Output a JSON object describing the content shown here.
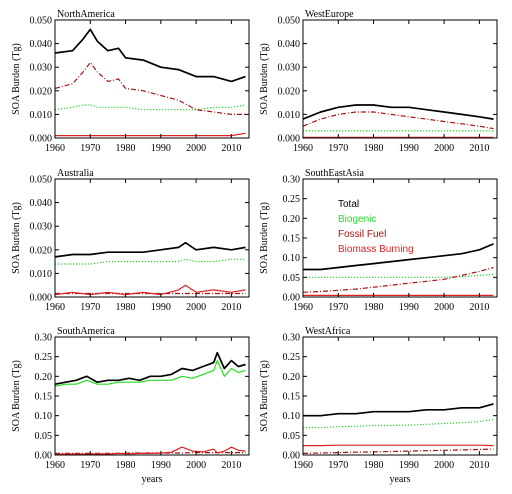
{
  "figure": {
    "x_label": "years",
    "y_label": "SOA Burden (Tg)"
  },
  "legend": [
    {
      "label": "Total",
      "color": "#000000"
    },
    {
      "label": "Biogenic",
      "color": "#22dd22"
    },
    {
      "label": "Fossil Fuel",
      "color": "#aa1111"
    },
    {
      "label": "Biomass Burning",
      "color": "#dd2222"
    }
  ],
  "chart_data": [
    {
      "type": "line",
      "title": "NorthAmerica",
      "xlabel": "",
      "ylabel": "SOA Burden (Tg)",
      "xlim": [
        1960,
        2015
      ],
      "ylim": [
        0,
        0.05
      ],
      "xticks": [
        1960,
        1970,
        1980,
        1990,
        2000,
        2010
      ],
      "yticks": [
        "0.000",
        "0.010",
        "0.020",
        "0.030",
        "0.040",
        "0.050"
      ],
      "x": [
        1960,
        1965,
        1968,
        1970,
        1972,
        1975,
        1978,
        1980,
        1985,
        1990,
        1995,
        2000,
        2005,
        2010,
        2014
      ],
      "series": [
        {
          "name": "Total",
          "color": "#000000",
          "style": "solid",
          "values": [
            0.036,
            0.037,
            0.042,
            0.046,
            0.041,
            0.037,
            0.038,
            0.034,
            0.033,
            0.03,
            0.029,
            0.026,
            0.026,
            0.024,
            0.026
          ]
        },
        {
          "name": "Biogenic",
          "color": "#22dd22",
          "style": "dotted",
          "values": [
            0.012,
            0.013,
            0.014,
            0.014,
            0.013,
            0.013,
            0.013,
            0.013,
            0.012,
            0.012,
            0.012,
            0.012,
            0.013,
            0.013,
            0.014
          ]
        },
        {
          "name": "Fossil Fuel",
          "color": "#aa1111",
          "style": "dashdot",
          "values": [
            0.021,
            0.023,
            0.028,
            0.032,
            0.028,
            0.024,
            0.025,
            0.021,
            0.02,
            0.018,
            0.016,
            0.012,
            0.011,
            0.01,
            0.01
          ]
        },
        {
          "name": "Biomass Burning",
          "color": "#dd2222",
          "style": "solid",
          "values": [
            0.001,
            0.001,
            0.001,
            0.001,
            0.001,
            0.001,
            0.001,
            0.001,
            0.001,
            0.001,
            0.001,
            0.001,
            0.001,
            0.001,
            0.002
          ]
        }
      ]
    },
    {
      "type": "line",
      "title": "WestEurope",
      "xlabel": "",
      "ylabel": "SOA Burden (Tg)",
      "xlim": [
        1960,
        2015
      ],
      "ylim": [
        0,
        0.05
      ],
      "xticks": [
        1960,
        1970,
        1980,
        1990,
        2000,
        2010
      ],
      "yticks": [
        "0.000",
        "0.010",
        "0.020",
        "0.030",
        "0.040",
        "0.050"
      ],
      "x": [
        1960,
        1965,
        1970,
        1975,
        1980,
        1985,
        1990,
        1995,
        2000,
        2005,
        2010,
        2014
      ],
      "series": [
        {
          "name": "Total",
          "color": "#000000",
          "style": "solid",
          "values": [
            0.008,
            0.011,
            0.013,
            0.014,
            0.014,
            0.013,
            0.013,
            0.012,
            0.011,
            0.01,
            0.009,
            0.008
          ]
        },
        {
          "name": "Biogenic",
          "color": "#22dd22",
          "style": "dotted",
          "values": [
            0.003,
            0.003,
            0.003,
            0.003,
            0.003,
            0.003,
            0.003,
            0.003,
            0.003,
            0.003,
            0.003,
            0.003
          ]
        },
        {
          "name": "Fossil Fuel",
          "color": "#aa1111",
          "style": "dashdot",
          "values": [
            0.005,
            0.008,
            0.01,
            0.011,
            0.011,
            0.01,
            0.009,
            0.008,
            0.007,
            0.006,
            0.005,
            0.004
          ]
        },
        {
          "name": "Biomass Burning",
          "color": "#dd2222",
          "style": "solid",
          "values": [
            0.0003,
            0.0003,
            0.0003,
            0.0003,
            0.0003,
            0.0003,
            0.0003,
            0.0003,
            0.0003,
            0.0003,
            0.0003,
            0.0003
          ]
        }
      ]
    },
    {
      "type": "line",
      "title": "Australia",
      "xlabel": "",
      "ylabel": "SOA Burden (Tg)",
      "xlim": [
        1960,
        2015
      ],
      "ylim": [
        0,
        0.05
      ],
      "xticks": [
        1960,
        1970,
        1980,
        1990,
        2000,
        2010
      ],
      "yticks": [
        "0.000",
        "0.010",
        "0.020",
        "0.030",
        "0.040",
        "0.050"
      ],
      "x": [
        1960,
        1965,
        1970,
        1975,
        1980,
        1985,
        1990,
        1995,
        1997,
        2000,
        2005,
        2010,
        2014
      ],
      "series": [
        {
          "name": "Total",
          "color": "#000000",
          "style": "solid",
          "values": [
            0.017,
            0.018,
            0.018,
            0.019,
            0.019,
            0.019,
            0.02,
            0.021,
            0.023,
            0.02,
            0.021,
            0.02,
            0.021
          ]
        },
        {
          "name": "Biogenic",
          "color": "#22dd22",
          "style": "dotted",
          "values": [
            0.014,
            0.014,
            0.014,
            0.015,
            0.015,
            0.015,
            0.015,
            0.015,
            0.016,
            0.015,
            0.015,
            0.016,
            0.016
          ]
        },
        {
          "name": "Fossil Fuel",
          "color": "#aa1111",
          "style": "dashdot",
          "values": [
            0.0015,
            0.0015,
            0.0015,
            0.0015,
            0.0015,
            0.0015,
            0.0015,
            0.0015,
            0.0015,
            0.0015,
            0.0015,
            0.0015,
            0.0015
          ]
        },
        {
          "name": "Biomass Burning",
          "color": "#dd2222",
          "style": "solid",
          "values": [
            0.001,
            0.002,
            0.001,
            0.002,
            0.001,
            0.002,
            0.001,
            0.003,
            0.005,
            0.002,
            0.003,
            0.002,
            0.003
          ]
        }
      ]
    },
    {
      "type": "line",
      "title": "SouthEastAsia",
      "xlabel": "",
      "ylabel": "SOA Burden (Tg)",
      "xlim": [
        1960,
        2015
      ],
      "ylim": [
        0,
        0.3
      ],
      "xticks": [
        1960,
        1970,
        1980,
        1990,
        2000,
        2010
      ],
      "yticks": [
        "0.00",
        "0.05",
        "0.10",
        "0.15",
        "0.20",
        "0.25",
        "0.30"
      ],
      "x": [
        1960,
        1965,
        1970,
        1975,
        1980,
        1985,
        1990,
        1995,
        2000,
        2005,
        2010,
        2014
      ],
      "series": [
        {
          "name": "Total",
          "color": "#000000",
          "style": "solid",
          "values": [
            0.07,
            0.07,
            0.075,
            0.08,
            0.085,
            0.09,
            0.095,
            0.1,
            0.105,
            0.11,
            0.12,
            0.135
          ]
        },
        {
          "name": "Biogenic",
          "color": "#22dd22",
          "style": "dotted",
          "values": [
            0.05,
            0.05,
            0.05,
            0.05,
            0.05,
            0.05,
            0.05,
            0.05,
            0.05,
            0.052,
            0.055,
            0.058
          ]
        },
        {
          "name": "Fossil Fuel",
          "color": "#aa1111",
          "style": "dashdot",
          "values": [
            0.012,
            0.014,
            0.017,
            0.02,
            0.025,
            0.03,
            0.035,
            0.04,
            0.045,
            0.055,
            0.065,
            0.075
          ]
        },
        {
          "name": "Biomass Burning",
          "color": "#dd2222",
          "style": "solid",
          "values": [
            0.004,
            0.004,
            0.004,
            0.004,
            0.004,
            0.004,
            0.004,
            0.004,
            0.004,
            0.004,
            0.004,
            0.004
          ]
        }
      ]
    },
    {
      "type": "line",
      "title": "SouthAmerica",
      "xlabel": "years",
      "ylabel": "SOA Burden (Tg)",
      "xlim": [
        1960,
        2015
      ],
      "ylim": [
        0,
        0.3
      ],
      "xticks": [
        1960,
        1970,
        1980,
        1990,
        2000,
        2010
      ],
      "yticks": [
        "0.00",
        "0.05",
        "0.10",
        "0.15",
        "0.20",
        "0.25",
        "0.30"
      ],
      "x": [
        1960,
        1963,
        1966,
        1969,
        1972,
        1975,
        1978,
        1981,
        1984,
        1987,
        1990,
        1993,
        1996,
        1999,
        2002,
        2005,
        2006,
        2008,
        2010,
        2012,
        2014
      ],
      "series": [
        {
          "name": "Total",
          "color": "#000000",
          "style": "solid",
          "values": [
            0.18,
            0.185,
            0.19,
            0.2,
            0.185,
            0.19,
            0.19,
            0.195,
            0.19,
            0.2,
            0.2,
            0.205,
            0.22,
            0.215,
            0.225,
            0.235,
            0.26,
            0.22,
            0.24,
            0.225,
            0.23
          ]
        },
        {
          "name": "Biogenic",
          "color": "#22dd22",
          "style": "solid",
          "values": [
            0.175,
            0.18,
            0.18,
            0.19,
            0.18,
            0.18,
            0.185,
            0.185,
            0.185,
            0.19,
            0.19,
            0.19,
            0.2,
            0.195,
            0.205,
            0.215,
            0.24,
            0.2,
            0.22,
            0.21,
            0.215
          ]
        },
        {
          "name": "Fossil Fuel",
          "color": "#aa1111",
          "style": "dashdot",
          "values": [
            0.004,
            0.004,
            0.004,
            0.004,
            0.004,
            0.004,
            0.004,
            0.005,
            0.005,
            0.005,
            0.005,
            0.005,
            0.005,
            0.006,
            0.006,
            0.006,
            0.006,
            0.006,
            0.006,
            0.006,
            0.006
          ]
        },
        {
          "name": "Biomass Burning",
          "color": "#dd2222",
          "style": "solid",
          "values": [
            0.002,
            0.002,
            0.003,
            0.002,
            0.003,
            0.002,
            0.004,
            0.003,
            0.004,
            0.004,
            0.005,
            0.007,
            0.02,
            0.01,
            0.008,
            0.015,
            0.005,
            0.01,
            0.02,
            0.012,
            0.01
          ]
        }
      ]
    },
    {
      "type": "line",
      "title": "WestAfrica",
      "xlabel": "years",
      "ylabel": "SOA Burden (Tg)",
      "xlim": [
        1960,
        2015
      ],
      "ylim": [
        0,
        0.3
      ],
      "xticks": [
        1960,
        1970,
        1980,
        1990,
        2000,
        2010
      ],
      "yticks": [
        "0.00",
        "0.05",
        "0.10",
        "0.15",
        "0.20",
        "0.25",
        "0.30"
      ],
      "x": [
        1960,
        1965,
        1970,
        1975,
        1980,
        1985,
        1990,
        1995,
        2000,
        2005,
        2010,
        2014
      ],
      "series": [
        {
          "name": "Total",
          "color": "#000000",
          "style": "solid",
          "values": [
            0.1,
            0.1,
            0.105,
            0.105,
            0.11,
            0.11,
            0.11,
            0.115,
            0.115,
            0.12,
            0.12,
            0.13
          ]
        },
        {
          "name": "Biogenic",
          "color": "#22dd22",
          "style": "dotted",
          "values": [
            0.07,
            0.07,
            0.072,
            0.073,
            0.075,
            0.075,
            0.076,
            0.078,
            0.08,
            0.082,
            0.085,
            0.09
          ]
        },
        {
          "name": "Fossil Fuel",
          "color": "#aa1111",
          "style": "dashdot",
          "values": [
            0.004,
            0.005,
            0.006,
            0.007,
            0.008,
            0.009,
            0.01,
            0.011,
            0.012,
            0.013,
            0.014,
            0.015
          ]
        },
        {
          "name": "Biomass Burning",
          "color": "#dd2222",
          "style": "solid",
          "values": [
            0.024,
            0.024,
            0.025,
            0.025,
            0.025,
            0.025,
            0.025,
            0.025,
            0.025,
            0.025,
            0.025,
            0.024
          ]
        }
      ]
    }
  ]
}
